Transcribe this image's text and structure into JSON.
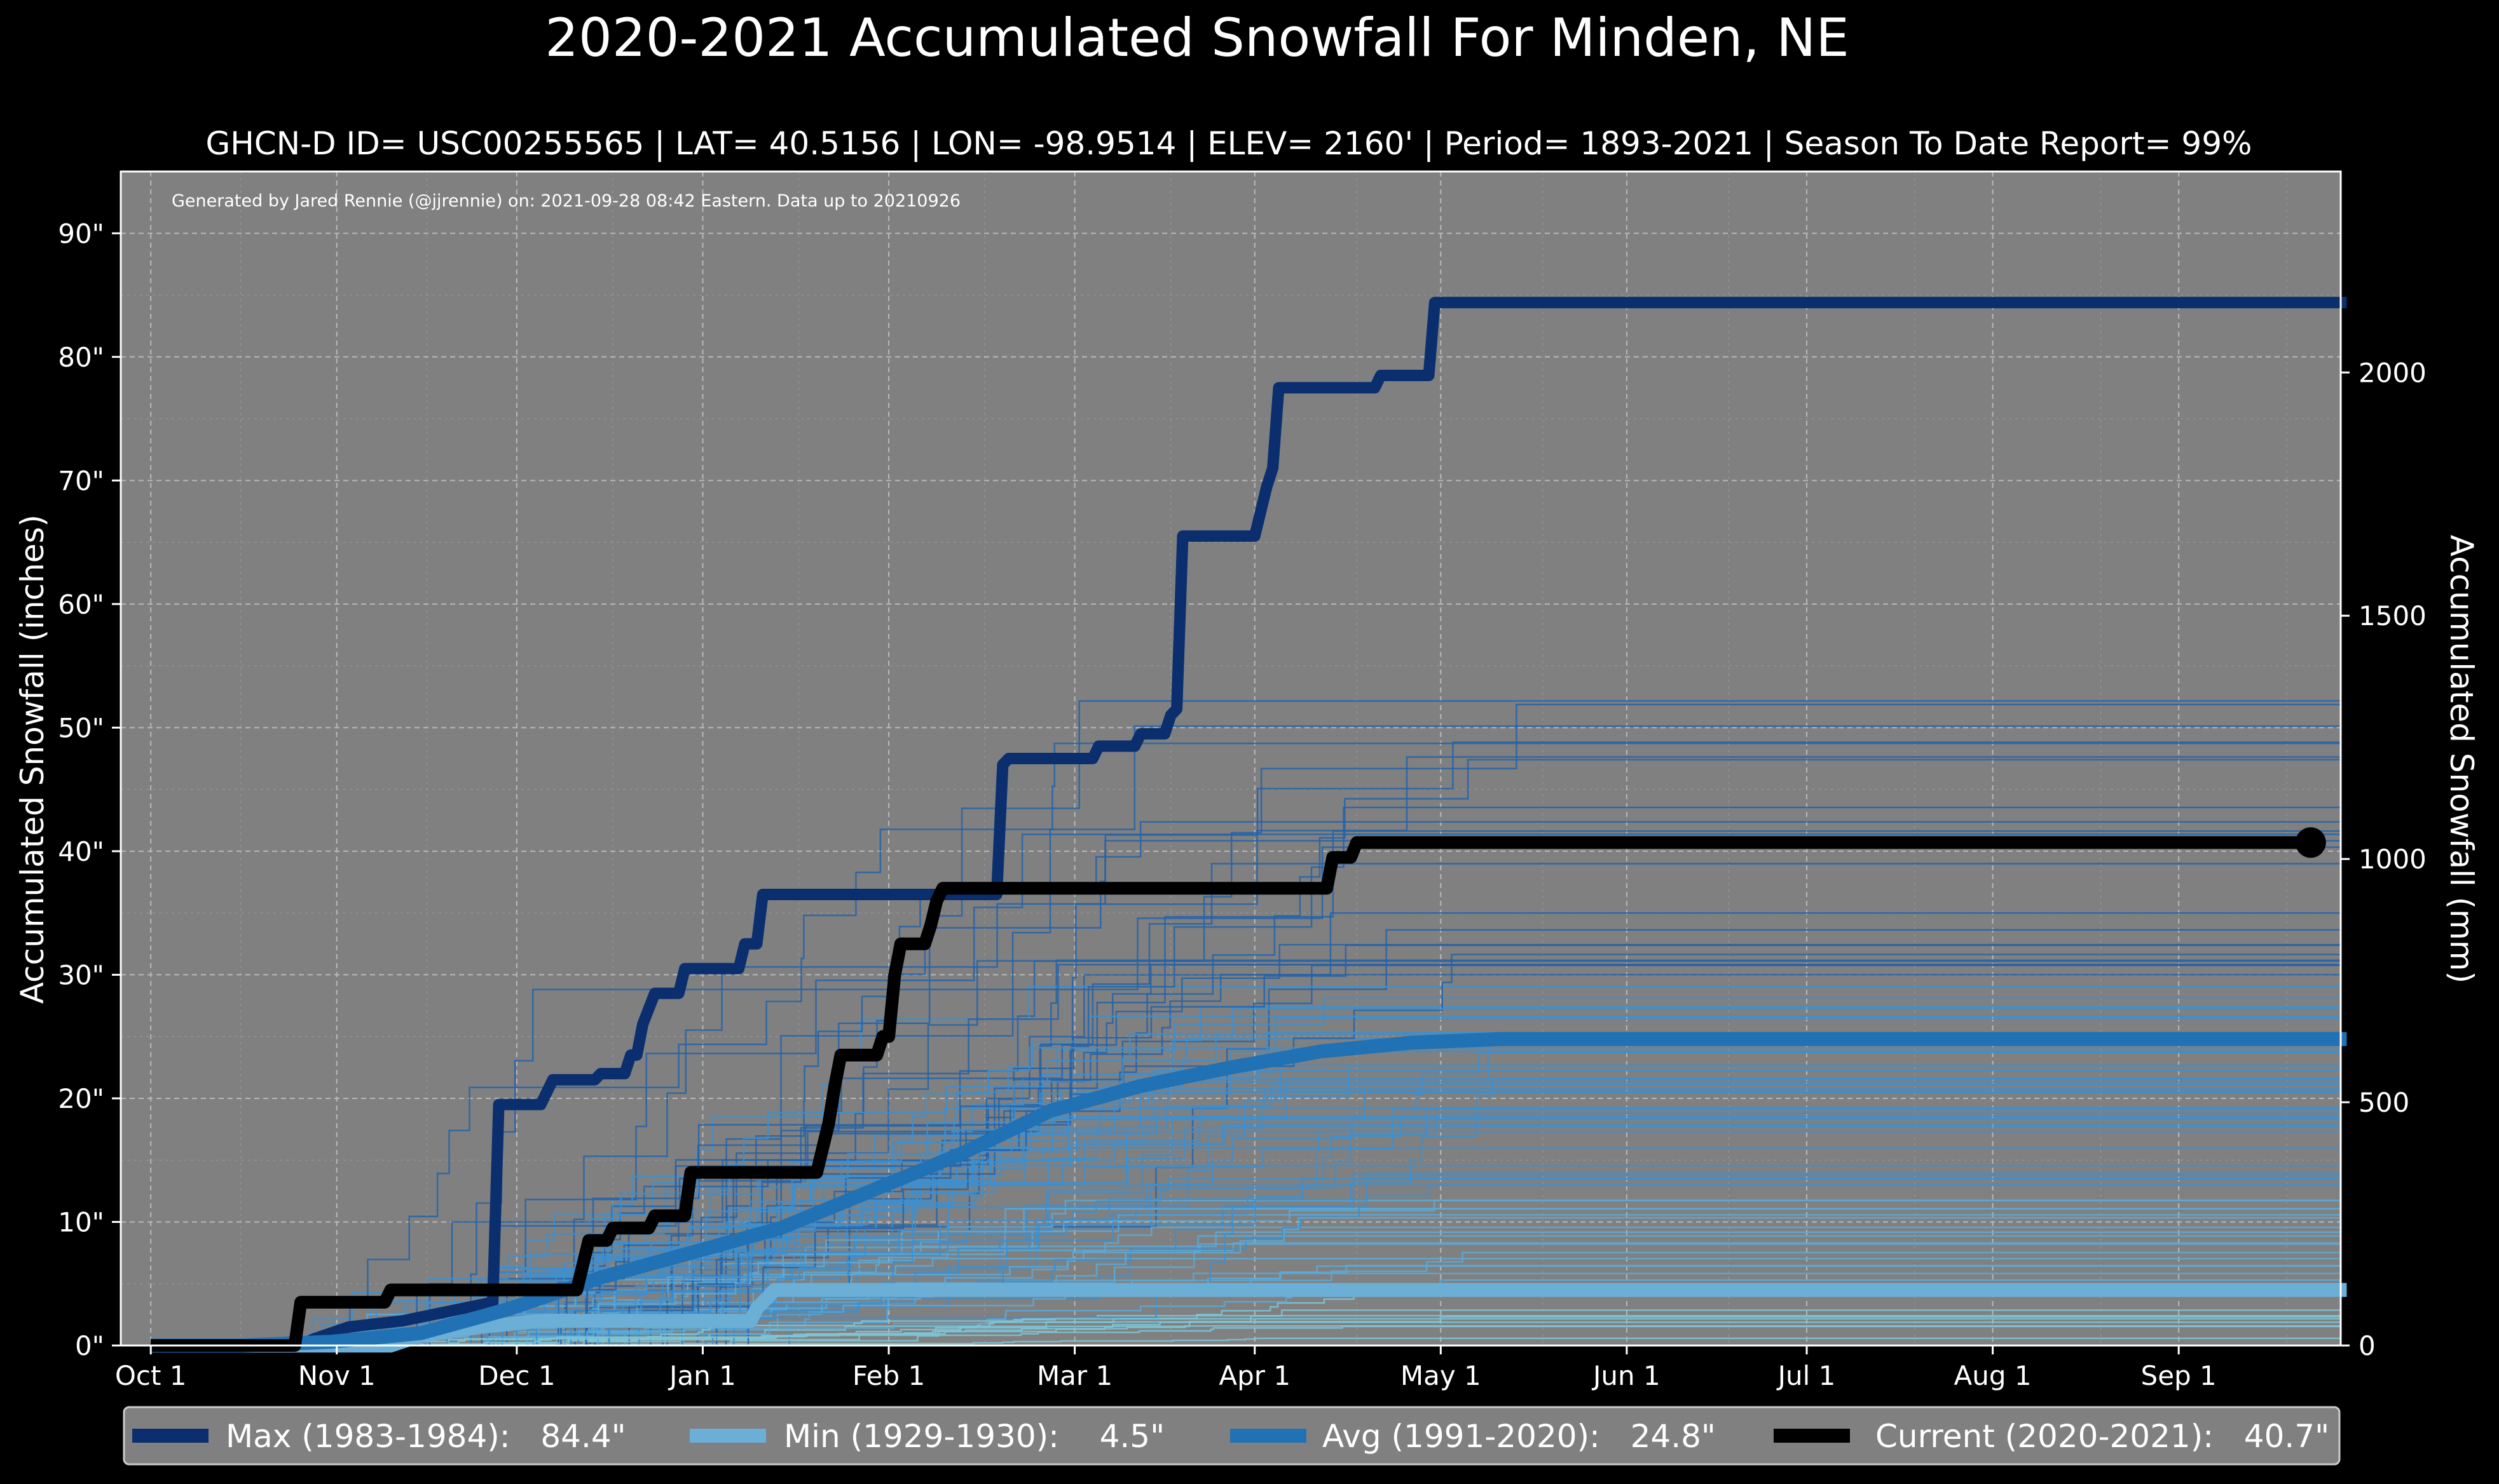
{
  "chart_data": {
    "type": "line",
    "title": "2020-2021 Accumulated Snowfall For Minden, NE",
    "subtitle": "GHCN-D ID= USC00255565 | LAT= 40.5156 | LON= -98.9514 | ELEV= 2160' | Period= 1893-2021 | Season To Date Report= 99%",
    "credit": "Generated by Jared Rennie (@jjrennie) on: 2021-09-28 08:42 Eastern. Data up to 20210926",
    "ylabel": "Accumulated Snowfall (inches)",
    "ylabel_right": "Accumulated Snowfall (mm)",
    "x_axis_unit": "day of season (0 = Oct 1)",
    "xlim": [
      -5,
      365
    ],
    "ylim": [
      0,
      95
    ],
    "ylim_right_mm": [
      0,
      2413
    ],
    "grid": true,
    "legend_position": "bottom",
    "x_ticks": [
      {
        "label": "Oct 1",
        "day": 0
      },
      {
        "label": "Nov 1",
        "day": 31
      },
      {
        "label": "Dec 1",
        "day": 61
      },
      {
        "label": "Jan 1",
        "day": 92
      },
      {
        "label": "Feb 1",
        "day": 123
      },
      {
        "label": "Mar 1",
        "day": 154
      },
      {
        "label": "Apr 1",
        "day": 184
      },
      {
        "label": "May 1",
        "day": 215
      },
      {
        "label": "Jun 1",
        "day": 246
      },
      {
        "label": "Jul 1",
        "day": 276
      },
      {
        "label": "Aug 1",
        "day": 307
      },
      {
        "label": "Sep 1",
        "day": 338
      }
    ],
    "y_ticks": [
      {
        "label": "0\"",
        "value": 0
      },
      {
        "label": "10\"",
        "value": 10
      },
      {
        "label": "20\"",
        "value": 20
      },
      {
        "label": "30\"",
        "value": 30
      },
      {
        "label": "40\"",
        "value": 40
      },
      {
        "label": "50\"",
        "value": 50
      },
      {
        "label": "60\"",
        "value": 60
      },
      {
        "label": "70\"",
        "value": 70
      },
      {
        "label": "80\"",
        "value": 80
      },
      {
        "label": "90\"",
        "value": 90
      }
    ],
    "y_ticks_right": [
      {
        "label": "0",
        "value": 0
      },
      {
        "label": "500",
        "value": 500
      },
      {
        "label": "1000",
        "value": 1000
      },
      {
        "label": "1500",
        "value": 1500
      },
      {
        "label": "2000",
        "value": 2000
      }
    ],
    "series": [
      {
        "name": "Max (1983-1984)",
        "legend": "Max (1983-1984):   84.4\"",
        "color": "#0b2f6e",
        "points": [
          [
            0,
            0
          ],
          [
            25,
            0
          ],
          [
            27,
            0.5
          ],
          [
            33,
            1.5
          ],
          [
            42,
            2.0
          ],
          [
            57,
            3.5
          ],
          [
            58,
            19.5
          ],
          [
            65,
            19.5
          ],
          [
            67,
            21.5
          ],
          [
            74,
            21.5
          ],
          [
            75,
            22
          ],
          [
            79,
            22
          ],
          [
            80,
            23.5
          ],
          [
            81,
            23.5
          ],
          [
            82,
            26
          ],
          [
            84,
            28.5
          ],
          [
            88,
            28.5
          ],
          [
            89,
            30.5
          ],
          [
            98,
            30.5
          ],
          [
            99,
            32.5
          ],
          [
            101,
            32.5
          ],
          [
            102,
            36.5
          ],
          [
            141,
            36.5
          ],
          [
            142,
            47
          ],
          [
            143,
            47.5
          ],
          [
            157,
            47.5
          ],
          [
            158,
            48.5
          ],
          [
            164,
            48.5
          ],
          [
            165,
            49.5
          ],
          [
            169,
            49.5
          ],
          [
            170,
            51
          ],
          [
            171,
            51.5
          ],
          [
            172,
            65.5
          ],
          [
            184,
            65.5
          ],
          [
            186,
            69.5
          ],
          [
            187,
            71
          ],
          [
            188,
            77.5
          ],
          [
            204,
            77.5
          ],
          [
            205,
            78.5
          ],
          [
            213,
            78.5
          ],
          [
            214,
            84.4
          ],
          [
            366,
            84.4
          ]
        ]
      },
      {
        "name": "Min (1929-1930)",
        "legend": "Min (1929-1930):    4.5\"",
        "color": "#6baed6",
        "points": [
          [
            0,
            0
          ],
          [
            40,
            0
          ],
          [
            45,
            0.8
          ],
          [
            55,
            1.5
          ],
          [
            65,
            2.0
          ],
          [
            100,
            2.0
          ],
          [
            101,
            3.0
          ],
          [
            104,
            4.5
          ],
          [
            366,
            4.5
          ]
        ]
      },
      {
        "name": "Avg (1991-2020)",
        "legend": "Avg (1991-2020):   24.8\"",
        "color": "#2171b5",
        "points": [
          [
            0,
            0
          ],
          [
            15,
            0
          ],
          [
            30,
            0.3
          ],
          [
            45,
            1.0
          ],
          [
            60,
            3.0
          ],
          [
            75,
            5.5
          ],
          [
            90,
            7.5
          ],
          [
            105,
            9.5
          ],
          [
            120,
            12.5
          ],
          [
            135,
            15.5
          ],
          [
            150,
            19.0
          ],
          [
            165,
            21.0
          ],
          [
            180,
            22.5
          ],
          [
            195,
            23.8
          ],
          [
            210,
            24.5
          ],
          [
            225,
            24.8
          ],
          [
            366,
            24.8
          ]
        ]
      },
      {
        "name": "Current (2020-2021)",
        "legend": "Current (2020-2021):   40.7\"",
        "color": "#000000",
        "points": [
          [
            0,
            0
          ],
          [
            24,
            0
          ],
          [
            25,
            3.5
          ],
          [
            39,
            3.5
          ],
          [
            40,
            4.5
          ],
          [
            71,
            4.5
          ],
          [
            73,
            8.5
          ],
          [
            76,
            8.5
          ],
          [
            77,
            9.5
          ],
          [
            83,
            9.5
          ],
          [
            84,
            10.5
          ],
          [
            89,
            10.5
          ],
          [
            90,
            14
          ],
          [
            111,
            14
          ],
          [
            113,
            18
          ],
          [
            114,
            21
          ],
          [
            115,
            23.5
          ],
          [
            121,
            23.5
          ],
          [
            122,
            25
          ],
          [
            123,
            25
          ],
          [
            124,
            30
          ],
          [
            125,
            32.5
          ],
          [
            129,
            32.5
          ],
          [
            130,
            34
          ],
          [
            131,
            36
          ],
          [
            132,
            37
          ],
          [
            196,
            37
          ],
          [
            197,
            39.5
          ],
          [
            200,
            39.5
          ],
          [
            201,
            40.7
          ],
          [
            360,
            40.7
          ]
        ],
        "end_marker": [
          360,
          40.7
        ]
      }
    ]
  }
}
